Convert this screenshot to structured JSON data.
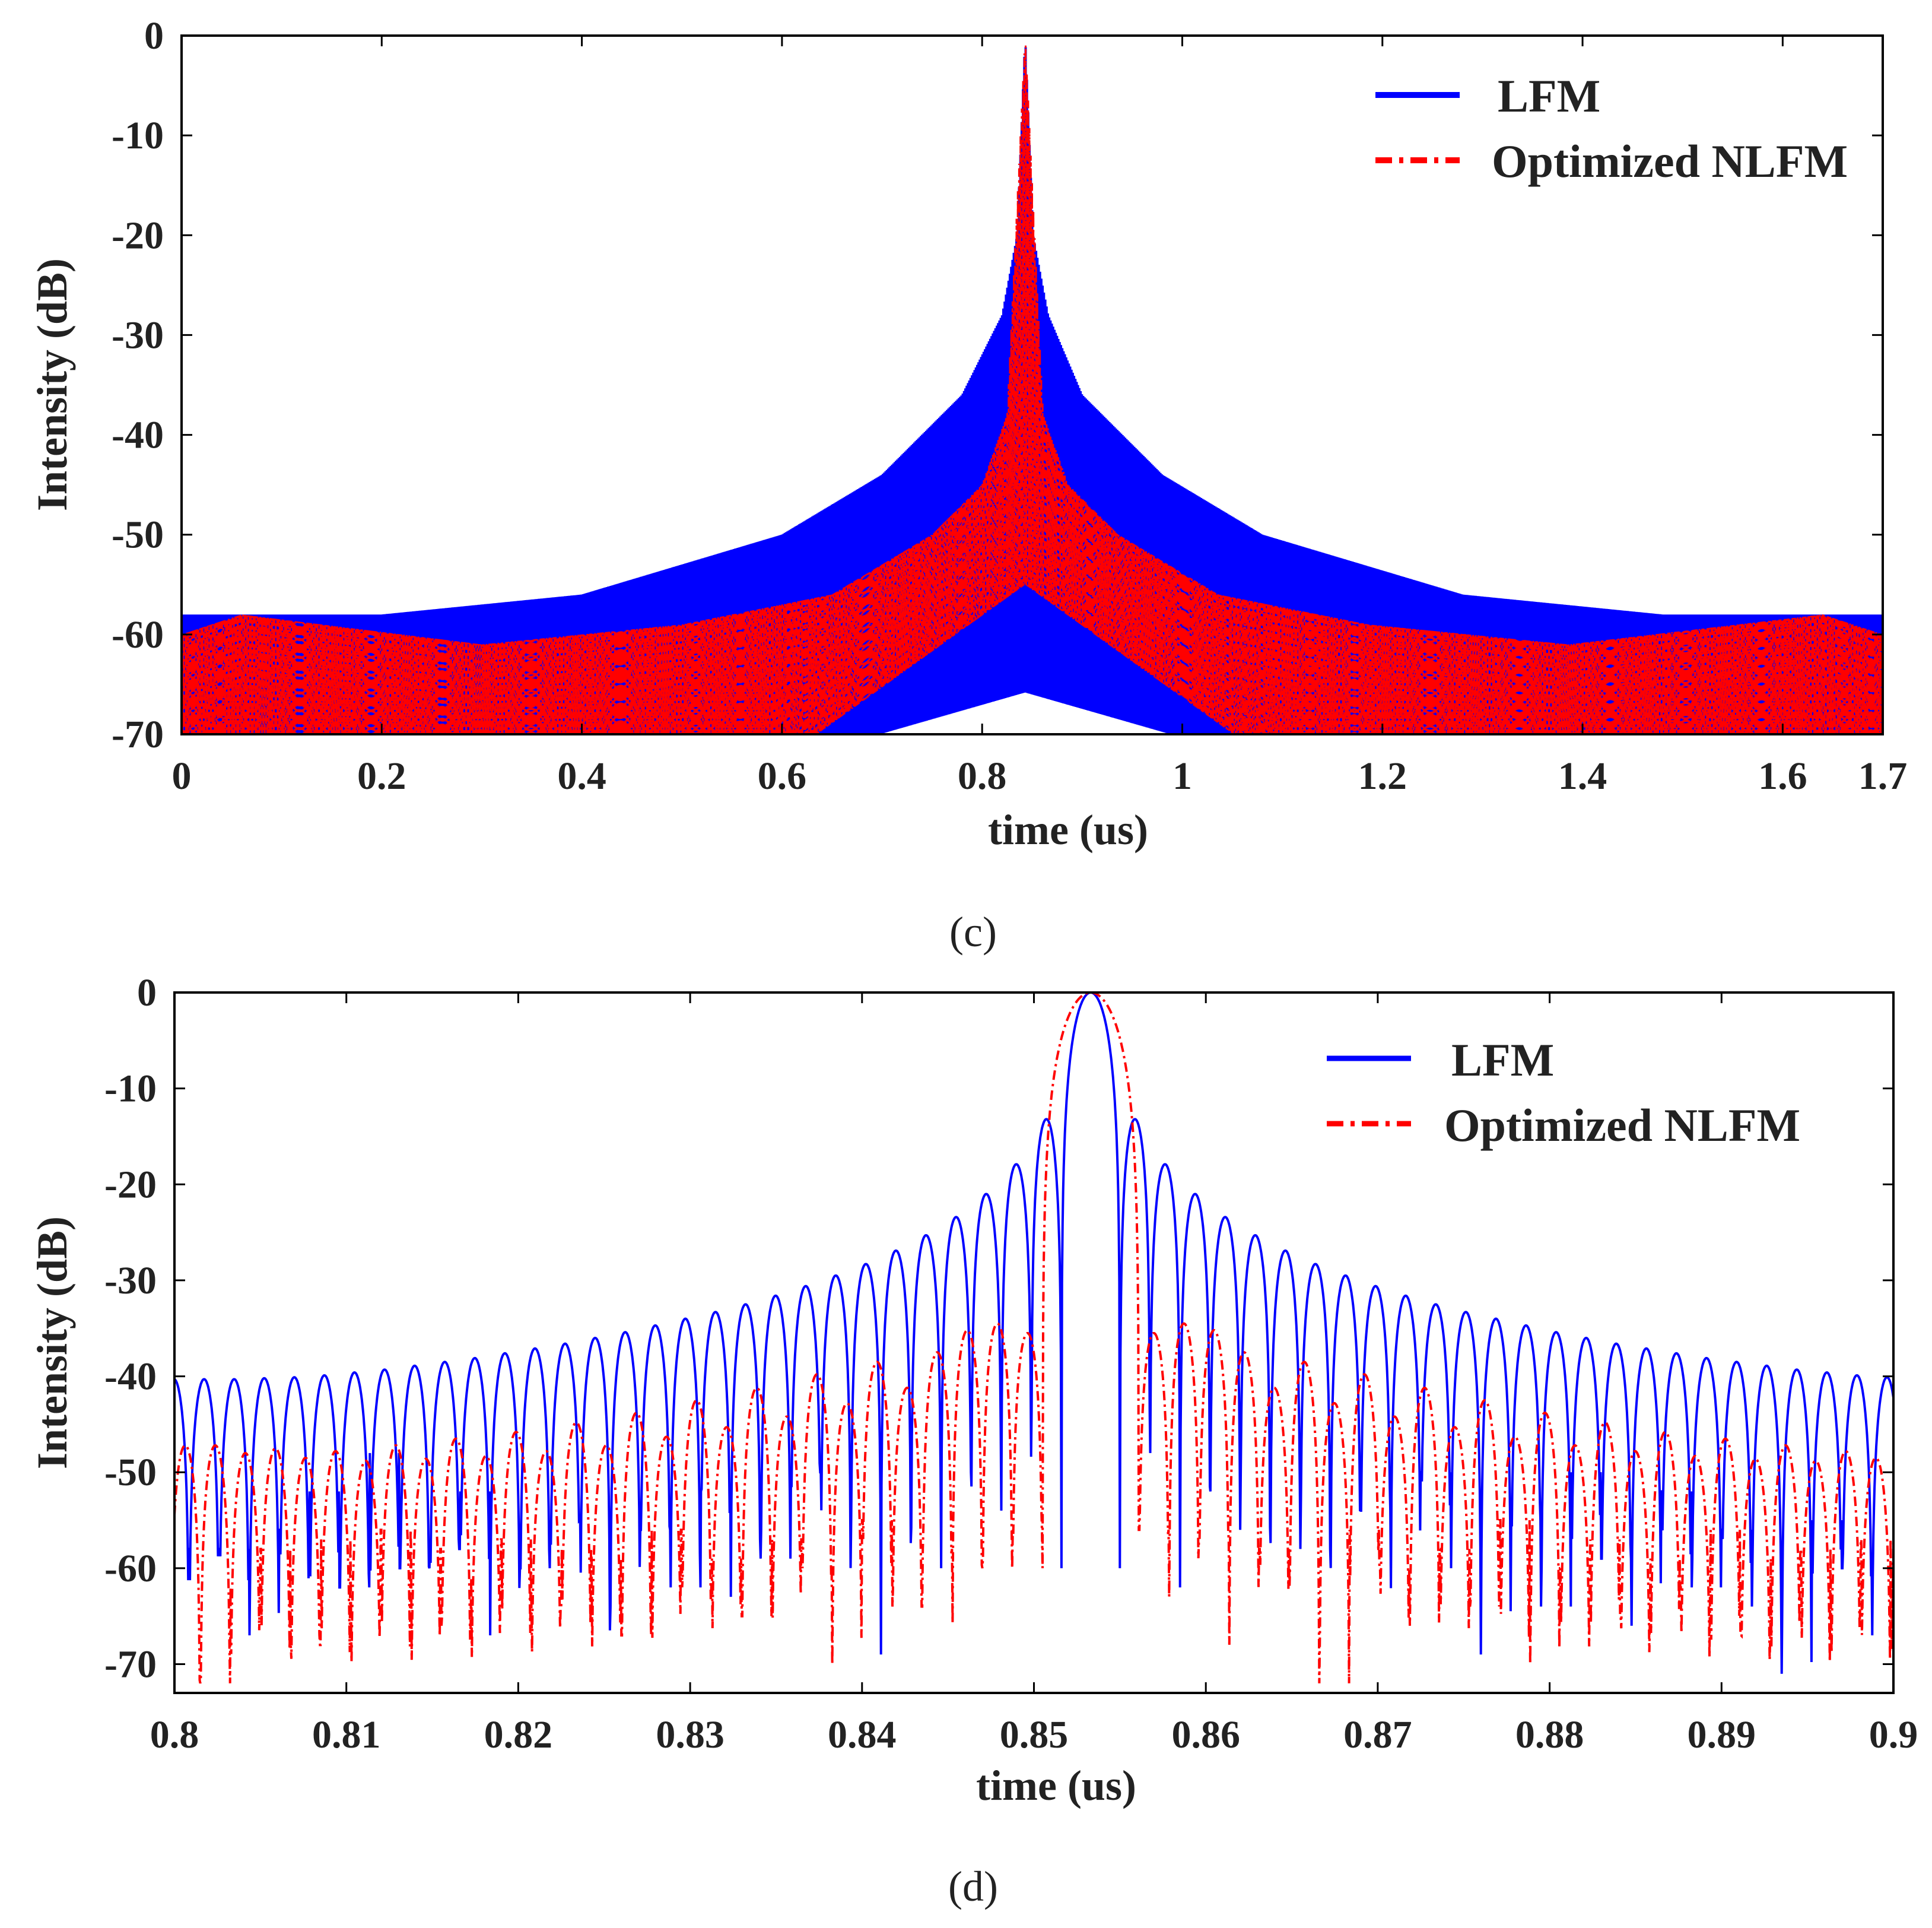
{
  "colors": {
    "lfm": "#0000ff",
    "nlfm": "#ff0000",
    "axis": "#000000"
  },
  "chart_data": [
    {
      "type": "line",
      "panel_caption": "(c)",
      "xlabel": "time (us)",
      "ylabel": "Intensity (dB)",
      "xlim": [
        0,
        1.7
      ],
      "ylim": [
        -70,
        0
      ],
      "xticks": [
        0,
        0.2,
        0.4,
        0.6,
        0.8,
        1,
        1.2,
        1.4,
        1.6,
        1.7
      ],
      "xtick_labels": [
        "0",
        "0.2",
        "0.4",
        "0.6",
        "0.8",
        "1",
        "1.2",
        "1.4",
        "1.6",
        "1.7"
      ],
      "yticks": [
        0,
        -10,
        -20,
        -30,
        -40,
        -50,
        -60,
        -70
      ],
      "ytick_labels": [
        "0",
        "-10",
        "-20",
        "-30",
        "-40",
        "-50",
        "-60",
        "-70"
      ],
      "legend": {
        "position": "top-right",
        "entries": [
          "LFM",
          "Optimized NLFM"
        ]
      },
      "series": [
        {
          "name": "LFM",
          "style": "solid",
          "peak_time": 0.843,
          "peak_db": 0,
          "sidelobe_envelope": {
            "x": [
              0.03,
              0.2,
              0.4,
              0.6,
              0.7,
              0.78,
              0.82,
              0.835,
              0.843,
              0.851,
              0.866,
              0.9,
              0.98,
              1.08,
              1.28,
              1.48,
              1.67
            ],
            "y": [
              -58,
              -58,
              -56,
              -50,
              -44,
              -36,
              -28,
              -20,
              0,
              -20,
              -28,
              -36,
              -44,
              -50,
              -56,
              -58,
              -58
            ]
          },
          "floor_db": -70
        },
        {
          "name": "Optimized NLFM",
          "style": "dash-dot",
          "peak_time": 0.843,
          "peak_db": 0,
          "sidelobe_envelope": {
            "x": [
              0,
              0.06,
              0.3,
              0.5,
              0.65,
              0.75,
              0.8,
              0.825,
              0.843,
              0.861,
              0.886,
              0.936,
              1.036,
              1.186,
              1.386,
              1.64,
              1.7
            ],
            "y": [
              -60,
              -58,
              -61,
              -59,
              -56,
              -50,
              -45,
              -38,
              0,
              -38,
              -45,
              -50,
              -56,
              -59,
              -61,
              -58,
              -60
            ]
          },
          "floor_db": -70
        }
      ]
    },
    {
      "type": "line",
      "panel_caption": "(d)",
      "xlabel": "time (us)",
      "ylabel": "Intensity (dB)",
      "xlim": [
        0.8,
        0.9
      ],
      "ylim": [
        -73,
        0
      ],
      "xticks": [
        0.8,
        0.81,
        0.82,
        0.83,
        0.84,
        0.85,
        0.86,
        0.87,
        0.88,
        0.89,
        0.9
      ],
      "xtick_labels": [
        "0.8",
        "0.81",
        "0.82",
        "0.83",
        "0.84",
        "0.85",
        "0.86",
        "0.87",
        "0.88",
        "0.89",
        "0.9"
      ],
      "yticks": [
        0,
        -10,
        -20,
        -30,
        -40,
        -50,
        -60,
        -70
      ],
      "ytick_labels": [
        "0",
        "-10",
        "-20",
        "-30",
        "-40",
        "-50",
        "-60",
        "-70"
      ],
      "legend": {
        "position": "top-right",
        "entries": [
          "LFM",
          "Optimized NLFM"
        ]
      },
      "series": [
        {
          "name": "LFM",
          "style": "solid",
          "peak_time": 0.8533,
          "peak_db": 0,
          "mainlobe_nulls": [
            0.8516,
            0.855
          ],
          "sidelobe_period": 0.00175,
          "sidelobe_peaks_db": [
            -13.2,
            -17.9,
            -21,
            -23.4,
            -25.3,
            -26.9,
            -28.3,
            -29.5,
            -30.6,
            -31.6,
            -32.5,
            -33.3,
            -34,
            -34.7,
            -35.4,
            -36,
            -36.6,
            -37.1,
            -37.6,
            -38.1,
            -38.5,
            -38.9,
            -39.3,
            -39.6,
            -39.9,
            -40.1,
            -40.2,
            -40.3
          ],
          "null_depths_db": [
            -60,
            -48,
            -62,
            -52,
            -56,
            -67,
            -58,
            -72,
            -54,
            -64,
            -50,
            -60,
            -69,
            -55,
            -64,
            -50,
            -59,
            -66,
            -52,
            -62,
            -56,
            -64,
            -71,
            -55,
            -60,
            -67,
            -52,
            -58
          ]
        },
        {
          "name": "Optimized NLFM",
          "style": "dash-dot",
          "peak_time": 0.8533,
          "peak_db": 0,
          "mainlobe_nulls": [
            0.8505,
            0.8561
          ],
          "sidelobe_period": 0.00175,
          "sidelobe_peaks_db": [
            -35.5,
            -34.5,
            -35.2,
            -37.5,
            -41.2,
            -38.5,
            -42.8,
            -39.8,
            -44.2,
            -41.2,
            -45.3,
            -42.5,
            -46.3,
            -43.8,
            -47.2,
            -44.8,
            -47.8,
            -45.8,
            -48.3,
            -46.5,
            -48.6,
            -47.2,
            -48.8,
            -47.8,
            -48.5,
            -47.5,
            -48,
            -47.2
          ],
          "null_depths_db": [
            -56,
            -63,
            -57,
            -68,
            -58,
            -62,
            -72,
            -56,
            -60,
            -66,
            -58,
            -64,
            -55,
            -70,
            -60,
            -57,
            -65,
            -59,
            -62,
            -56,
            -67,
            -59,
            -58,
            -64,
            -57,
            -61,
            -66,
            -58
          ]
        }
      ]
    }
  ]
}
